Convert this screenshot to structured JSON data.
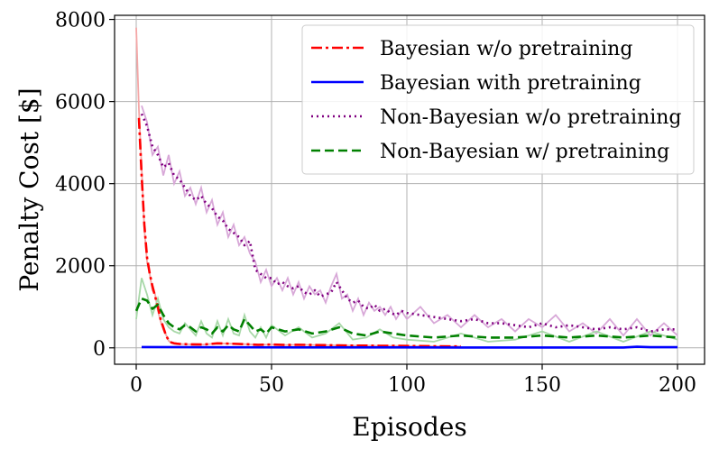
{
  "chart_data": {
    "type": "line",
    "xlabel": "Episodes",
    "ylabel": "Penalty Cost  [$]",
    "xlim": [
      -8,
      210
    ],
    "ylim": [
      -400,
      8100
    ],
    "x_ticks": [
      0,
      50,
      100,
      150,
      200
    ],
    "y_ticks": [
      0,
      2000,
      4000,
      6000,
      8000
    ],
    "grid": true,
    "legend_position": "top-right",
    "series": [
      {
        "name": "Bayesian w/o pretraining",
        "color": "#ff0000",
        "style": "dashdot",
        "raw_color": "#f4a6a6",
        "x": [
          0,
          1,
          2,
          3,
          4,
          5,
          6,
          7,
          8,
          9,
          10,
          11,
          12,
          13,
          14,
          15,
          16,
          17,
          18,
          19,
          20,
          25,
          30,
          35,
          40,
          45,
          50,
          55,
          60,
          65,
          70,
          75,
          80,
          85,
          90,
          95,
          100,
          110,
          120
        ],
        "values": [
          null,
          5600,
          4200,
          3000,
          2200,
          1800,
          1500,
          1250,
          1000,
          700,
          500,
          300,
          180,
          130,
          110,
          100,
          95,
          90,
          90,
          88,
          85,
          80,
          110,
          100,
          90,
          75,
          80,
          70,
          75,
          70,
          65,
          60,
          55,
          55,
          50,
          50,
          45,
          40,
          35
        ],
        "raw_values": [
          7800,
          5800,
          4400,
          2900,
          2100,
          1800,
          1400,
          1300,
          900,
          650,
          450,
          320,
          170,
          120,
          110,
          100,
          95,
          90,
          90,
          88,
          85,
          80,
          110,
          100,
          90,
          75,
          80,
          70,
          75,
          70,
          65,
          60,
          55,
          55,
          50,
          50,
          45,
          40,
          35
        ]
      },
      {
        "name": "Bayesian with pretraining",
        "color": "#0000ff",
        "style": "solid",
        "x": [
          2,
          20,
          40,
          60,
          80,
          100,
          120,
          140,
          160,
          180,
          185,
          190,
          200
        ],
        "values": [
          20,
          15,
          12,
          10,
          10,
          10,
          8,
          8,
          8,
          8,
          25,
          15,
          15
        ]
      },
      {
        "name": "Non-Bayesian w/o pretraining",
        "color": "#800080",
        "style": "dotted",
        "raw_color": "#d8a8d8",
        "x": [
          2,
          4,
          6,
          8,
          10,
          12,
          14,
          16,
          18,
          20,
          22,
          24,
          26,
          28,
          30,
          32,
          34,
          36,
          38,
          40,
          42,
          44,
          46,
          48,
          50,
          52,
          54,
          56,
          58,
          60,
          62,
          64,
          66,
          68,
          70,
          72,
          74,
          76,
          78,
          80,
          82,
          84,
          86,
          88,
          90,
          92,
          94,
          96,
          98,
          100,
          105,
          110,
          115,
          120,
          125,
          130,
          135,
          140,
          145,
          150,
          155,
          160,
          165,
          170,
          175,
          180,
          185,
          190,
          195,
          200
        ],
        "values": [
          5700,
          5400,
          4900,
          4700,
          4400,
          4500,
          4200,
          4100,
          3900,
          3700,
          3600,
          3700,
          3500,
          3400,
          3200,
          3100,
          2900,
          2800,
          2700,
          2500,
          2600,
          1900,
          1800,
          1700,
          1700,
          1550,
          1600,
          1500,
          1450,
          1500,
          1350,
          1300,
          1400,
          1250,
          1300,
          1350,
          1600,
          1400,
          1200,
          1100,
          1150,
          1000,
          950,
          1050,
          900,
          950,
          850,
          800,
          900,
          850,
          800,
          750,
          700,
          650,
          700,
          600,
          600,
          550,
          500,
          600,
          500,
          550,
          500,
          450,
          500,
          450,
          500,
          400,
          450,
          450
        ],
        "raw_values": [
          5900,
          5500,
          4700,
          4900,
          4200,
          4700,
          4000,
          4300,
          3700,
          3900,
          3500,
          3900,
          3300,
          3600,
          3000,
          3300,
          2700,
          3000,
          2500,
          2700,
          2300,
          2100,
          1600,
          1900,
          1500,
          1700,
          1400,
          1700,
          1300,
          1600,
          1200,
          1500,
          1300,
          1400,
          1100,
          1500,
          1800,
          1200,
          1300,
          900,
          1200,
          800,
          1100,
          900,
          1000,
          800,
          1000,
          700,
          900,
          700,
          1000,
          600,
          800,
          500,
          800,
          500,
          700,
          400,
          700,
          500,
          800,
          400,
          600,
          350,
          700,
          300,
          700,
          300,
          600,
          300
        ]
      },
      {
        "name": "Non-Bayesian w/ pretraining",
        "color": "#008000",
        "style": "dashed",
        "raw_color": "#a8d8a8",
        "x": [
          0,
          2,
          4,
          6,
          8,
          10,
          12,
          14,
          16,
          18,
          20,
          22,
          24,
          26,
          28,
          30,
          32,
          34,
          36,
          38,
          40,
          42,
          44,
          46,
          48,
          50,
          55,
          60,
          65,
          70,
          75,
          80,
          85,
          90,
          95,
          100,
          110,
          120,
          130,
          140,
          150,
          160,
          170,
          180,
          190,
          200
        ],
        "values": [
          900,
          1200,
          1150,
          950,
          1050,
          800,
          600,
          500,
          450,
          550,
          500,
          400,
          500,
          450,
          350,
          500,
          400,
          550,
          450,
          400,
          700,
          550,
          400,
          450,
          350,
          500,
          400,
          450,
          350,
          400,
          500,
          350,
          300,
          400,
          350,
          300,
          250,
          300,
          250,
          250,
          300,
          250,
          300,
          250,
          300,
          250
        ],
        "raw_values": [
          700,
          1700,
          1300,
          800,
          1200,
          700,
          500,
          400,
          350,
          600,
          450,
          300,
          650,
          350,
          250,
          650,
          300,
          700,
          350,
          300,
          800,
          400,
          250,
          500,
          250,
          550,
          300,
          500,
          250,
          350,
          600,
          200,
          250,
          450,
          250,
          200,
          150,
          350,
          150,
          200,
          400,
          150,
          400,
          150,
          400,
          200
        ]
      }
    ]
  }
}
